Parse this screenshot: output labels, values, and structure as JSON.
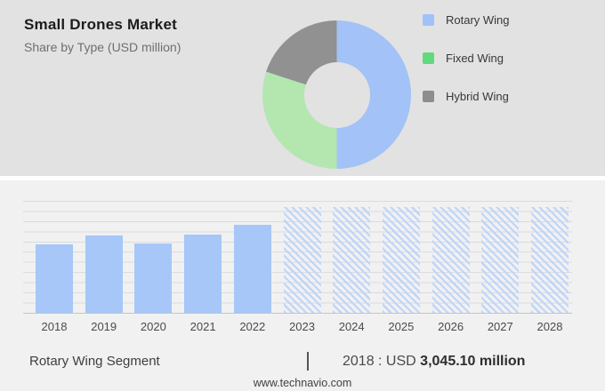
{
  "header": {
    "title": "Small Drones Market",
    "subtitle": "Share by Type (USD million)"
  },
  "donut": {
    "hole_color": "#e2e2e2"
  },
  "chart_data": [
    {
      "type": "pie",
      "donut": true,
      "title": "Share by Type (USD million)",
      "labels": [
        "Rotary Wing",
        "Fixed Wing",
        "Hybrid Wing"
      ],
      "values_percent": [
        50,
        30,
        20
      ],
      "colors": [
        "#a3c2f7",
        "#b4e6b0",
        "#919191"
      ],
      "legend_marker_colors": [
        "#a0c2f8",
        "#62d97d",
        "#8d8d8d"
      ],
      "legend_position": "right"
    },
    {
      "type": "bar",
      "unit": "USD million",
      "categories": [
        "2018",
        "2019",
        "2020",
        "2021",
        "2022",
        "2023",
        "2024",
        "2025",
        "2026",
        "2027",
        "2028"
      ],
      "values": [
        3045.1,
        3440,
        3085,
        3480,
        3930,
        4705,
        4705,
        4705,
        4705,
        4705,
        4705
      ],
      "bar_styles": [
        "solid",
        "solid",
        "solid",
        "solid",
        "solid",
        "hatched",
        "hatched",
        "hatched",
        "hatched",
        "hatched",
        "hatched"
      ],
      "ylim": [
        0,
        5000
      ],
      "grid": true,
      "xlabel": "",
      "ylabel": "",
      "note": "Only 2018 value labeled on image (USD 3,045.10 million); other values estimated from bar heights; 2023-2028 hatched forecast bars equal height"
    }
  ],
  "footer": {
    "segment_label": "Rotary Wing Segment",
    "year_label": "2018 : USD",
    "value_bold": "3,045.10 million",
    "website": "www.technavio.com"
  }
}
